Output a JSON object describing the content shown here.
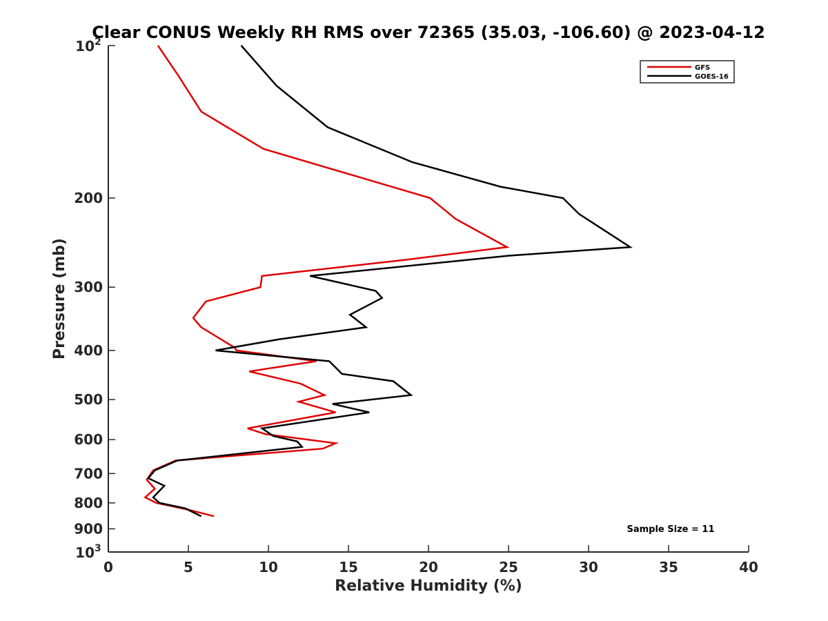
{
  "chart_data": {
    "type": "line",
    "title": "Clear CONUS Weekly RH RMS over 72365 (35.03, -106.60) @ 2023-04-12",
    "xlabel": "Relative Humidity (%)",
    "ylabel": "Pressure (mb)",
    "xlim": [
      0,
      40
    ],
    "ylim": [
      100,
      1000
    ],
    "y_scale": "log",
    "y_reversed": true,
    "grid": false,
    "legend_position": "top-right",
    "x_ticks": [
      "0",
      "5",
      "10",
      "15",
      "20",
      "25",
      "30",
      "35",
      "40"
    ],
    "y_ticks": [
      {
        "value": 100,
        "base": "10",
        "exp": "2"
      },
      {
        "value": 200,
        "label": "200"
      },
      {
        "value": 300,
        "label": "300"
      },
      {
        "value": 400,
        "label": "400"
      },
      {
        "value": 500,
        "label": "500"
      },
      {
        "value": 600,
        "label": "600"
      },
      {
        "value": 700,
        "label": "700"
      },
      {
        "value": 800,
        "label": "800"
      },
      {
        "value": 900,
        "label": "900"
      },
      {
        "value": 1000,
        "base": "10",
        "exp": "3"
      }
    ],
    "annotation": "Sample Size = 11",
    "series": [
      {
        "name": "GFS",
        "color": "#e00000",
        "points": [
          [
            3.1,
            100
          ],
          [
            4.4,
            115
          ],
          [
            5.8,
            135
          ],
          [
            9.7,
            160
          ],
          [
            20.1,
            200
          ],
          [
            21.7,
            220
          ],
          [
            24.9,
            250
          ],
          [
            18.5,
            265
          ],
          [
            9.6,
            285
          ],
          [
            9.5,
            300
          ],
          [
            6.1,
            320
          ],
          [
            5.3,
            345
          ],
          [
            5.8,
            360
          ],
          [
            7.9,
            395
          ],
          [
            8.0,
            400
          ],
          [
            13.0,
            420
          ],
          [
            8.8,
            440
          ],
          [
            12.0,
            465
          ],
          [
            13.5,
            490
          ],
          [
            11.9,
            505
          ],
          [
            14.2,
            530
          ],
          [
            8.7,
            570
          ],
          [
            9.8,
            585
          ],
          [
            14.2,
            610
          ],
          [
            13.4,
            625
          ],
          [
            4.2,
            660
          ],
          [
            2.8,
            690
          ],
          [
            2.4,
            720
          ],
          [
            2.9,
            750
          ],
          [
            2.3,
            780
          ],
          [
            3.0,
            800
          ],
          [
            5.0,
            825
          ],
          [
            6.6,
            850
          ]
        ]
      },
      {
        "name": "GOES-16",
        "color": "#000000",
        "points": [
          [
            8.3,
            100
          ],
          [
            10.5,
            120
          ],
          [
            13.7,
            145
          ],
          [
            19.0,
            170
          ],
          [
            24.5,
            190
          ],
          [
            28.4,
            200
          ],
          [
            29.4,
            215
          ],
          [
            32.6,
            250
          ],
          [
            25.0,
            260
          ],
          [
            12.6,
            285
          ],
          [
            16.7,
            305
          ],
          [
            17.1,
            315
          ],
          [
            15.1,
            340
          ],
          [
            16.1,
            360
          ],
          [
            10.7,
            380
          ],
          [
            6.7,
            400
          ],
          [
            13.8,
            420
          ],
          [
            14.6,
            445
          ],
          [
            17.8,
            460
          ],
          [
            18.9,
            490
          ],
          [
            14.0,
            510
          ],
          [
            16.3,
            530
          ],
          [
            9.6,
            570
          ],
          [
            10.3,
            590
          ],
          [
            11.8,
            605
          ],
          [
            12.1,
            620
          ],
          [
            4.3,
            660
          ],
          [
            2.9,
            690
          ],
          [
            2.5,
            715
          ],
          [
            3.5,
            740
          ],
          [
            2.8,
            780
          ],
          [
            3.2,
            800
          ],
          [
            4.8,
            820
          ],
          [
            5.8,
            850
          ]
        ]
      }
    ]
  }
}
